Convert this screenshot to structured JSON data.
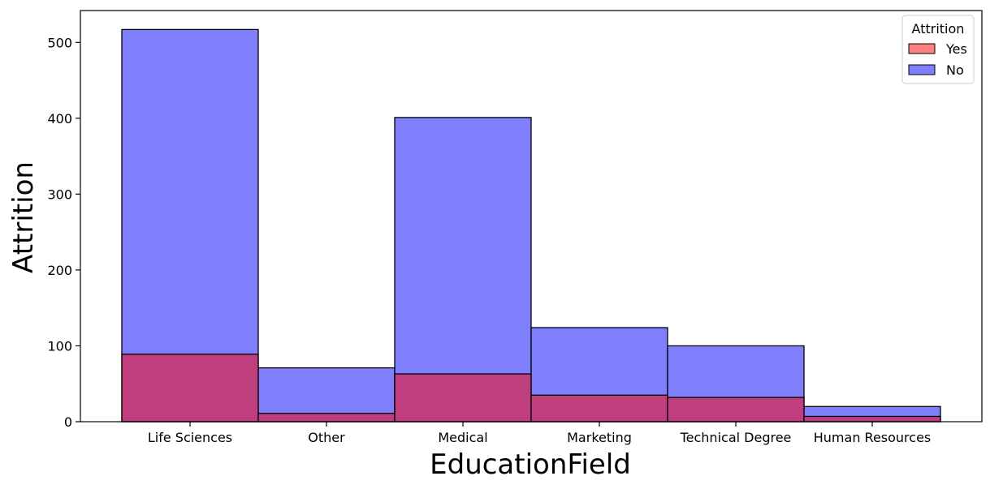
{
  "chart_data": {
    "type": "bar",
    "categories": [
      "Life Sciences",
      "Other",
      "Medical",
      "Marketing",
      "Technical Degree",
      "Human Resources"
    ],
    "series": [
      {
        "name": "Yes",
        "values": [
          89,
          11,
          63,
          35,
          32,
          7
        ],
        "color": "#ff8080"
      },
      {
        "name": "No",
        "values": [
          517,
          71,
          401,
          124,
          100,
          20
        ],
        "color": "#8080ff"
      }
    ],
    "overlap_color": "#bf3e7d",
    "xlabel": "EducationField",
    "ylabel": "Attrition",
    "ylim": [
      0,
      542
    ],
    "yticks": [
      0,
      100,
      200,
      300,
      400,
      500
    ],
    "legend": {
      "title": "Attrition",
      "placement": "top-right"
    },
    "grid": false
  }
}
